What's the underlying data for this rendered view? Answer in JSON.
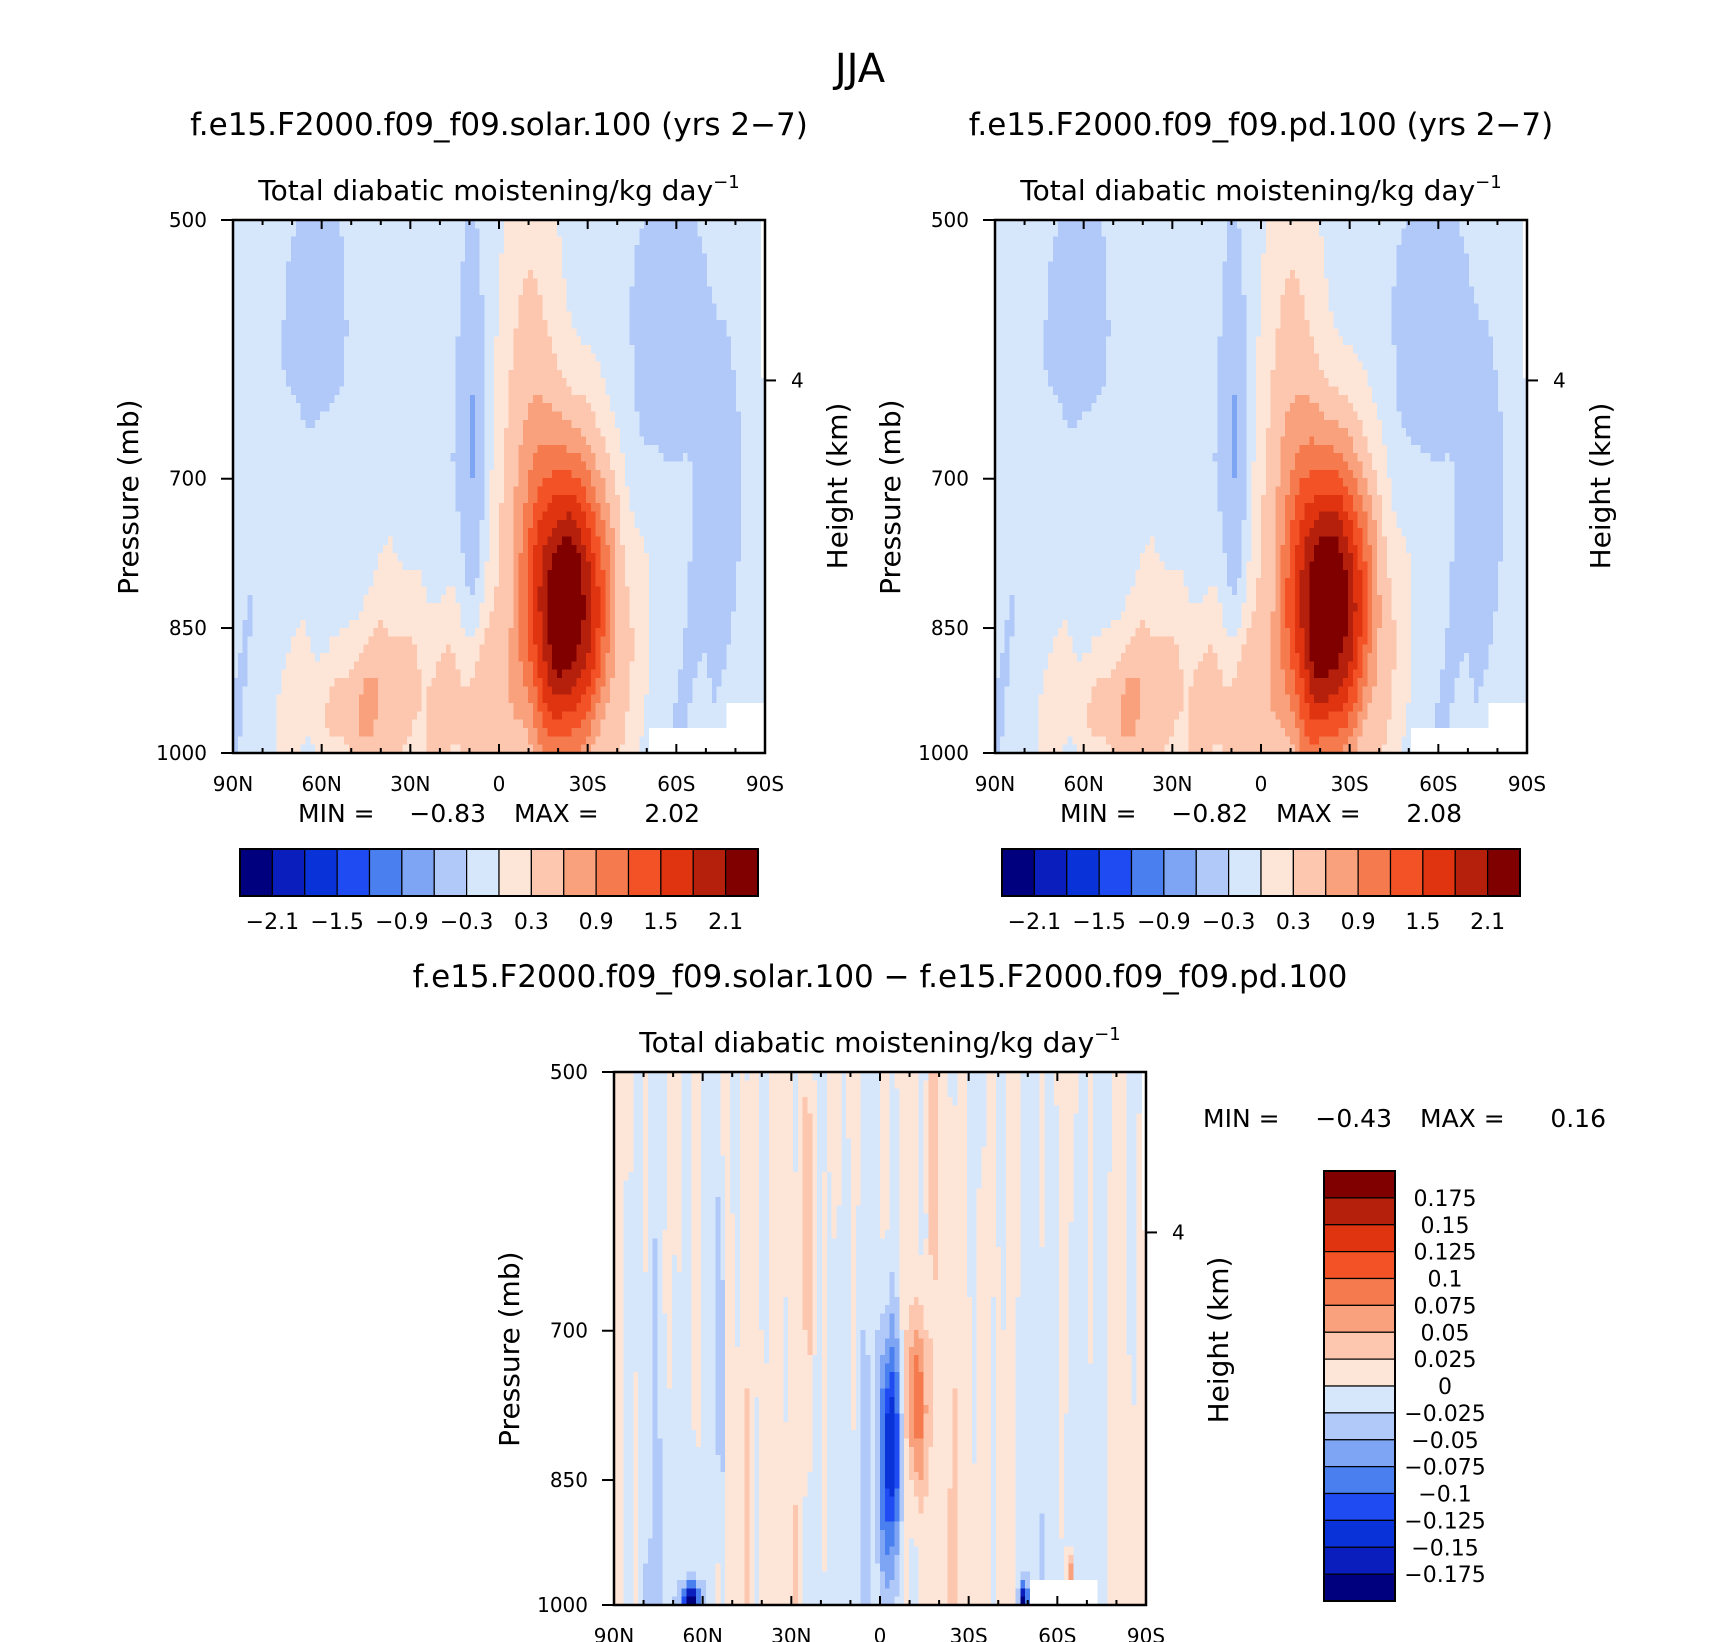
{
  "figure": {
    "title": "JJA"
  },
  "chart_data": [
    {
      "type": "heatmap",
      "title": "f.e15.F2000.f09_f09.solar.100 (yrs 2−7)",
      "subtitle": "Total diabatic moistening/kg day",
      "subtitle_exp": "−1",
      "ylabel": "Pressure (mb)",
      "y2label": "Height (km)",
      "x_ticks": [
        "90N",
        "60N",
        "30N",
        "0",
        "30S",
        "60S",
        "90S"
      ],
      "y_ticks": [
        "500",
        "700",
        "850",
        "1000"
      ],
      "y2_ticks": [
        "4"
      ],
      "min_label": "MIN =",
      "min_value": "−0.83",
      "max_label": "MAX =",
      "max_value": "2.02",
      "colorbar_labels": [
        "−2.1",
        "−1.5",
        "−0.9",
        "−0.3",
        "0.3",
        "0.9",
        "1.5",
        "2.1"
      ]
    },
    {
      "type": "heatmap",
      "title": "f.e15.F2000.f09_f09.pd.100 (yrs 2−7)",
      "subtitle": "Total diabatic moistening/kg day",
      "subtitle_exp": "−1",
      "ylabel": "Pressure (mb)",
      "y2label": "Height (km)",
      "x_ticks": [
        "90N",
        "60N",
        "30N",
        "0",
        "30S",
        "60S",
        "90S"
      ],
      "y_ticks": [
        "500",
        "700",
        "850",
        "1000"
      ],
      "y2_ticks": [
        "4"
      ],
      "min_label": "MIN =",
      "min_value": "−0.82",
      "max_label": "MAX =",
      "max_value": "2.08",
      "colorbar_labels": [
        "−2.1",
        "−1.5",
        "−0.9",
        "−0.3",
        "0.3",
        "0.9",
        "1.5",
        "2.1"
      ]
    },
    {
      "type": "heatmap",
      "title": "f.e15.F2000.f09_f09.solar.100 − f.e15.F2000.f09_f09.pd.100",
      "subtitle": "Total diabatic moistening/kg day",
      "subtitle_exp": "−1",
      "ylabel": "Pressure (mb)",
      "y2label": "Height (km)",
      "x_ticks": [
        "90N",
        "60N",
        "30N",
        "0",
        "30S",
        "60S",
        "90S"
      ],
      "y_ticks": [
        "500",
        "700",
        "850",
        "1000"
      ],
      "y2_ticks": [
        "4"
      ],
      "min_label": "MIN =",
      "min_value": "−0.43",
      "max_label": "MAX =",
      "max_value": "0.16",
      "colorbar_labels": [
        "0.175",
        "0.15",
        "0.125",
        "0.1",
        "0.075",
        "0.05",
        "0.025",
        "0",
        "−0.025",
        "−0.05",
        "−0.075",
        "−0.1",
        "−0.125",
        "−0.15",
        "−0.175"
      ]
    }
  ],
  "colors": {
    "palette": [
      "#00007f",
      "#0a1ebe",
      "#0a32d9",
      "#1f4cf2",
      "#4a7ff0",
      "#7ea5f3",
      "#b0c9f8",
      "#d7e7fb",
      "#fde6d7",
      "#fcc7ae",
      "#f9a07d",
      "#f57a4d",
      "#f25225",
      "#e03410",
      "#b4200c",
      "#800000"
    ]
  }
}
